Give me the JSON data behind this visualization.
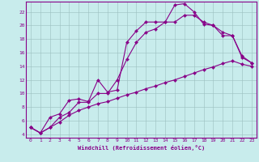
{
  "xlabel": "Windchill (Refroidissement éolien,°C)",
  "bg_color": "#c8ecec",
  "line_color": "#880088",
  "xlim_min": -0.5,
  "xlim_max": 23.5,
  "ylim_min": 3.5,
  "ylim_max": 23.5,
  "xticks": [
    0,
    1,
    2,
    3,
    4,
    5,
    6,
    7,
    8,
    9,
    10,
    11,
    12,
    13,
    14,
    15,
    16,
    17,
    18,
    19,
    20,
    21,
    22,
    23
  ],
  "yticks": [
    4,
    6,
    8,
    10,
    12,
    14,
    16,
    18,
    20,
    22
  ],
  "line1_x": [
    0,
    1,
    2,
    3,
    4,
    5,
    6,
    7,
    8,
    9,
    10,
    11,
    12,
    13,
    14,
    15,
    16,
    17,
    18,
    19,
    20,
    21,
    22,
    23
  ],
  "line1_y": [
    5.0,
    4.2,
    5.0,
    5.8,
    6.8,
    7.5,
    8.0,
    8.5,
    8.8,
    9.3,
    9.8,
    10.2,
    10.7,
    11.1,
    11.6,
    12.0,
    12.5,
    13.0,
    13.5,
    13.9,
    14.4,
    14.8,
    14.3,
    14.0
  ],
  "line2_x": [
    0,
    1,
    2,
    3,
    4,
    5,
    6,
    7,
    8,
    9,
    10,
    11,
    12,
    13,
    14,
    15,
    16,
    17,
    18,
    19,
    20,
    21,
    22,
    23
  ],
  "line2_y": [
    5.0,
    4.2,
    5.0,
    6.5,
    7.2,
    8.7,
    8.7,
    10.0,
    10.0,
    12.0,
    15.0,
    17.5,
    19.0,
    19.5,
    20.5,
    20.5,
    21.5,
    21.5,
    20.5,
    20.0,
    19.0,
    18.5,
    15.3,
    14.5
  ],
  "line3_x": [
    0,
    1,
    2,
    3,
    4,
    5,
    6,
    7,
    8,
    9,
    10,
    11,
    12,
    13,
    14,
    15,
    16,
    17,
    18,
    19,
    20,
    21,
    22,
    23
  ],
  "line3_y": [
    5.0,
    4.2,
    6.5,
    7.0,
    9.0,
    9.2,
    8.8,
    12.0,
    10.2,
    10.5,
    17.5,
    19.2,
    20.5,
    20.5,
    20.5,
    23.0,
    23.2,
    22.0,
    20.2,
    20.0,
    18.5,
    18.5,
    15.5,
    14.5
  ],
  "grid_color": "#9bbfbf",
  "spine_color": "#880088",
  "tick_fontsize": 4.5,
  "xlabel_fontsize": 5.0,
  "marker_size": 2.2,
  "line_width": 0.8
}
